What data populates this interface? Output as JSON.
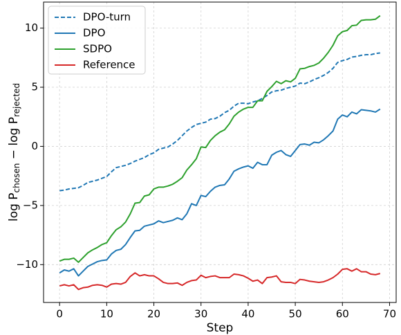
{
  "chart_data": {
    "type": "line",
    "x_label": "Step",
    "y_label": [
      "log P",
      "chosen",
      " − log P",
      "rejected"
    ],
    "x": [
      0,
      1,
      2,
      3,
      4,
      5,
      6,
      7,
      8,
      9,
      10,
      11,
      12,
      13,
      14,
      15,
      16,
      17,
      18,
      19,
      20,
      21,
      22,
      23,
      24,
      25,
      26,
      27,
      28,
      29,
      30,
      31,
      32,
      33,
      34,
      35,
      36,
      37,
      38,
      39,
      40,
      41,
      42,
      43,
      44,
      45,
      46,
      47,
      48,
      49,
      50,
      51,
      52,
      53,
      54,
      55,
      56,
      57,
      58,
      59,
      60,
      61,
      62,
      63,
      64,
      65,
      66,
      67,
      68
    ],
    "series": [
      {
        "name": "DPO-turn",
        "color": "#1f77b4",
        "dashed": true,
        "values": [
          -3.75,
          -3.7,
          -3.6,
          -3.55,
          -3.5,
          -3.3,
          -3.05,
          -2.95,
          -2.85,
          -2.7,
          -2.55,
          -2.15,
          -1.8,
          -1.7,
          -1.6,
          -1.45,
          -1.25,
          -1.1,
          -0.95,
          -0.7,
          -0.55,
          -0.25,
          -0.15,
          -0.05,
          0.2,
          0.5,
          0.9,
          1.3,
          1.6,
          1.85,
          1.95,
          2.05,
          2.3,
          2.35,
          2.55,
          2.85,
          3.05,
          3.4,
          3.65,
          3.65,
          3.6,
          3.75,
          3.85,
          4.05,
          4.3,
          4.6,
          4.7,
          4.75,
          4.9,
          5.0,
          5.1,
          5.35,
          5.3,
          5.45,
          5.65,
          5.8,
          6.0,
          6.25,
          6.6,
          7.1,
          7.25,
          7.35,
          7.55,
          7.6,
          7.7,
          7.75,
          7.75,
          7.85,
          7.9
        ]
      },
      {
        "name": "DPO",
        "color": "#1f77b4",
        "dashed": false,
        "values": [
          -10.7,
          -10.45,
          -10.55,
          -10.35,
          -10.95,
          -10.55,
          -10.15,
          -9.95,
          -9.75,
          -9.65,
          -9.6,
          -9.1,
          -8.8,
          -8.7,
          -8.3,
          -7.7,
          -7.15,
          -7.1,
          -6.75,
          -6.65,
          -6.55,
          -6.3,
          -6.45,
          -6.35,
          -6.25,
          -6.05,
          -6.2,
          -5.7,
          -4.85,
          -5.0,
          -4.15,
          -4.25,
          -3.8,
          -3.45,
          -3.3,
          -3.25,
          -2.75,
          -2.1,
          -1.9,
          -1.75,
          -1.65,
          -1.85,
          -1.35,
          -1.55,
          -1.55,
          -0.75,
          -0.5,
          -0.35,
          -0.7,
          -0.85,
          -0.35,
          0.15,
          0.2,
          0.1,
          0.35,
          0.3,
          0.55,
          0.9,
          1.3,
          2.3,
          2.65,
          2.5,
          2.9,
          2.75,
          3.1,
          3.05,
          3.0,
          2.9,
          3.15
        ]
      },
      {
        "name": "SDPO",
        "color": "#2ca02c",
        "dashed": false,
        "values": [
          -9.7,
          -9.55,
          -9.55,
          -9.45,
          -9.8,
          -9.4,
          -9.0,
          -8.75,
          -8.55,
          -8.3,
          -8.15,
          -7.55,
          -7.05,
          -6.8,
          -6.4,
          -5.7,
          -4.8,
          -4.75,
          -4.2,
          -4.1,
          -3.6,
          -3.45,
          -3.45,
          -3.35,
          -3.2,
          -2.95,
          -2.65,
          -2.0,
          -1.55,
          -1.05,
          -0.05,
          -0.1,
          0.5,
          0.9,
          1.2,
          1.4,
          1.9,
          2.55,
          2.9,
          3.15,
          3.3,
          3.3,
          3.85,
          3.85,
          4.65,
          5.05,
          5.5,
          5.3,
          5.55,
          5.45,
          5.75,
          6.55,
          6.6,
          6.75,
          6.85,
          7.05,
          7.45,
          7.95,
          8.55,
          9.35,
          9.7,
          9.8,
          10.2,
          10.25,
          10.65,
          10.7,
          10.7,
          10.75,
          11.05
        ]
      },
      {
        "name": "Reference",
        "color": "#d62728",
        "dashed": false,
        "values": [
          -11.8,
          -11.7,
          -11.8,
          -11.7,
          -12.1,
          -11.95,
          -11.9,
          -11.75,
          -11.7,
          -11.75,
          -11.9,
          -11.65,
          -11.6,
          -11.65,
          -11.5,
          -11.0,
          -10.7,
          -10.95,
          -10.85,
          -10.95,
          -10.95,
          -11.2,
          -11.5,
          -11.6,
          -11.6,
          -11.55,
          -11.75,
          -11.5,
          -11.35,
          -11.3,
          -10.9,
          -11.1,
          -11.0,
          -10.95,
          -11.1,
          -11.1,
          -11.1,
          -10.8,
          -10.85,
          -10.95,
          -11.15,
          -11.4,
          -11.3,
          -11.6,
          -11.1,
          -11.05,
          -10.95,
          -11.45,
          -11.5,
          -11.5,
          -11.6,
          -11.25,
          -11.3,
          -11.4,
          -11.45,
          -11.5,
          -11.45,
          -11.3,
          -11.1,
          -10.8,
          -10.4,
          -10.35,
          -10.55,
          -10.35,
          -10.6,
          -10.6,
          -10.8,
          -10.85,
          -10.75
        ]
      }
    ],
    "xlim": [
      -3.4,
      71.4
    ],
    "xticks": [
      0,
      10,
      20,
      30,
      40,
      50,
      60,
      70
    ],
    "ylim": [
      -13.2,
      12.2
    ],
    "yticks": [
      {
        "value": -10,
        "label": "−10"
      },
      {
        "value": -5,
        "label": "−5"
      },
      0,
      5,
      10
    ],
    "grid": true,
    "legend": "upper-left"
  }
}
